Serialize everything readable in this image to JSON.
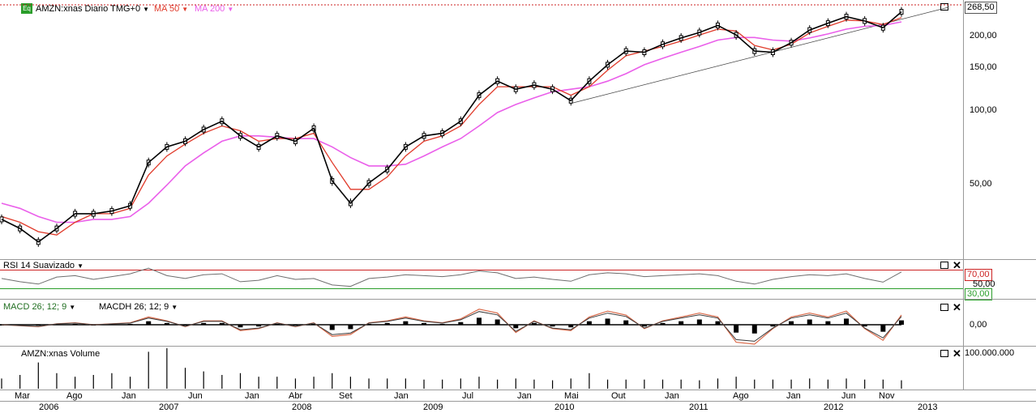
{
  "header": {
    "eq_label": "Eq",
    "symbol_title": "AMZN:xnas Diario TMG+0",
    "ma50_label": "MA 50",
    "ma200_label": "MA 200",
    "last_price": "268,50"
  },
  "panels": {
    "rsi_title": "RSI 14 Suavizado",
    "macd_title": "MACD 26; 12; 9",
    "macdh_title": "MACDH 26; 12; 9",
    "volume_title": "AMZN:xnas Volume"
  },
  "axes": {
    "price_ticks": [
      "200,00",
      "150,00",
      "100,00",
      "50,00"
    ],
    "rsi_ticks": [
      "70,00",
      "50,00",
      "30,00"
    ],
    "macd_ticks": [
      "0,00"
    ],
    "volume_ticks": [
      "100.000.000"
    ],
    "months": [
      "Mar",
      "Ago",
      "Jan",
      "Jun",
      "Jan",
      "Abr",
      "Set",
      "Jan",
      "Jul",
      "Jan",
      "Mai",
      "Out",
      "Jan",
      "Ago",
      "Jan",
      "Jun",
      "Nov"
    ],
    "years": [
      "2006",
      "2007",
      "2008",
      "2009",
      "2010",
      "2011",
      "2012",
      "2013"
    ]
  },
  "colors": {
    "price": "#000000",
    "ma50": "#e03a2a",
    "ma200": "#ea5fea",
    "rsi": "#6e6e6e",
    "rsi_upper": "#cc2222",
    "rsi_lower": "#2a9d2a",
    "macd": "#3a3a3a",
    "macd_signal": "#d96a4a",
    "volume": "#000000"
  },
  "chart_data": {
    "type": "line",
    "title": "AMZN:xnas Diario TMG+0",
    "y_scale": "log",
    "ylim": [
      25,
      280
    ],
    "dates": [
      "2006-03",
      "2006-05",
      "2006-07",
      "2006-08",
      "2006-10",
      "2006-12",
      "2007-01",
      "2007-03",
      "2007-04",
      "2007-06",
      "2007-08",
      "2007-10",
      "2007-12",
      "2008-01",
      "2008-03",
      "2008-05",
      "2008-07",
      "2008-09",
      "2008-10",
      "2008-11",
      "2008-12",
      "2009-01",
      "2009-03",
      "2009-05",
      "2009-07",
      "2009-09",
      "2009-10",
      "2009-11",
      "2010-01",
      "2010-03",
      "2010-05",
      "2010-07",
      "2010-09",
      "2010-10",
      "2010-12",
      "2011-02",
      "2011-04",
      "2011-06",
      "2011-07",
      "2011-09",
      "2011-10",
      "2011-12",
      "2012-02",
      "2012-04",
      "2012-06",
      "2012-08",
      "2012-09",
      "2012-10",
      "2012-11",
      "2012-12"
    ],
    "series": [
      {
        "name": "AMZN:xnas",
        "values": [
          36,
          33,
          29,
          33,
          38,
          38,
          39,
          41,
          62,
          72,
          76,
          85,
          92,
          80,
          72,
          80,
          76,
          86,
          52,
          42,
          51,
          58,
          72,
          80,
          82,
          92,
          118,
          135,
          125,
          130,
          125,
          112,
          135,
          158,
          180,
          178,
          192,
          204,
          215,
          230,
          210,
          180,
          178,
          195,
          220,
          235,
          250,
          240,
          225,
          262
        ]
      },
      {
        "name": "MA 50",
        "values": [
          37,
          35,
          32,
          31,
          35,
          38,
          38,
          40,
          55,
          66,
          74,
          82,
          88,
          84,
          76,
          78,
          78,
          82,
          62,
          48,
          48,
          54,
          66,
          76,
          80,
          88,
          108,
          128,
          128,
          128,
          128,
          118,
          128,
          150,
          172,
          180,
          188,
          198,
          210,
          222,
          218,
          190,
          182,
          192,
          214,
          228,
          242,
          240,
          232,
          248
        ]
      },
      {
        "name": "MA 200",
        "values": [
          42,
          40,
          37,
          35,
          35,
          36,
          36,
          37,
          42,
          50,
          60,
          68,
          76,
          80,
          80,
          79,
          78,
          78,
          72,
          65,
          60,
          60,
          61,
          66,
          72,
          78,
          88,
          100,
          108,
          115,
          122,
          125,
          128,
          135,
          145,
          158,
          168,
          178,
          188,
          200,
          205,
          205,
          200,
          198,
          204,
          212,
          222,
          228,
          230,
          238
        ]
      },
      {
        "name": "RSI 14 Suavizado",
        "values": [
          52,
          45,
          40,
          55,
          58,
          50,
          56,
          62,
          74,
          58,
          52,
          60,
          62,
          45,
          48,
          58,
          50,
          52,
          38,
          35,
          52,
          55,
          60,
          58,
          56,
          60,
          68,
          64,
          52,
          55,
          50,
          46,
          60,
          64,
          62,
          56,
          58,
          60,
          62,
          58,
          46,
          40,
          50,
          56,
          60,
          58,
          62,
          52,
          44,
          66
        ]
      },
      {
        "name": "MACD 26; 12; 9",
        "values": [
          0,
          -0.5,
          -1,
          0.5,
          1,
          0,
          0.5,
          1,
          4,
          2,
          -1,
          2,
          2,
          -3,
          -2,
          1,
          -1,
          1,
          -6,
          -5,
          1,
          2,
          4,
          2,
          1,
          3,
          8,
          6,
          -4,
          2,
          -2,
          -3,
          4,
          7,
          5,
          -2,
          2,
          4,
          6,
          4,
          -9,
          -10,
          -2,
          4,
          6,
          4,
          7,
          -2,
          -8,
          5
        ]
      }
    ],
    "volume_tick": "100.000.000"
  }
}
